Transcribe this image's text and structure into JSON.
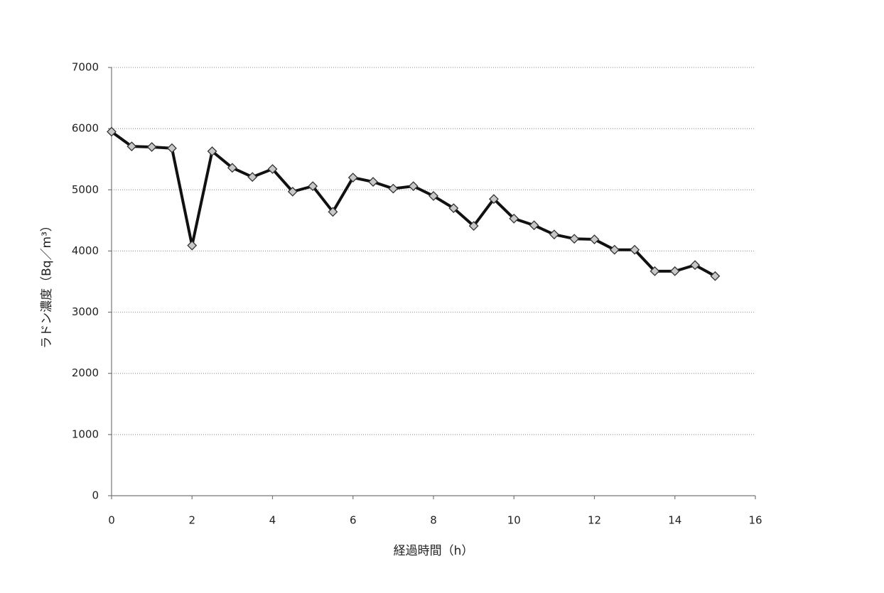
{
  "chart_data": {
    "type": "line",
    "xlabel": "経過時間（h）",
    "ylabel": "ラドン濃度（Bq／m³）",
    "x": [
      0,
      0.5,
      1,
      1.5,
      2,
      2.5,
      3,
      3.5,
      4,
      4.5,
      5,
      5.5,
      6,
      6.5,
      7,
      7.5,
      8,
      8.5,
      9,
      9.5,
      10,
      10.5,
      11,
      11.5,
      12,
      12.5,
      13,
      13.5,
      14,
      14.5,
      15
    ],
    "values": [
      5950,
      5710,
      5700,
      5680,
      4090,
      5630,
      5360,
      5210,
      5340,
      4970,
      5060,
      4640,
      5200,
      5130,
      5020,
      5060,
      4900,
      4700,
      4410,
      4850,
      4530,
      4420,
      4270,
      4200,
      4190,
      4020,
      4020,
      3670,
      3670,
      3770,
      3590
    ],
    "color": "#111111",
    "marker_color": "#c8c8c8",
    "xlim": [
      0,
      16
    ],
    "xticks": [
      0,
      2,
      4,
      6,
      8,
      10,
      12,
      14,
      16
    ],
    "ylim": [
      0,
      7000
    ],
    "yticks": [
      0,
      1000,
      2000,
      3000,
      4000,
      5000,
      6000,
      7000
    ],
    "grid": true
  }
}
